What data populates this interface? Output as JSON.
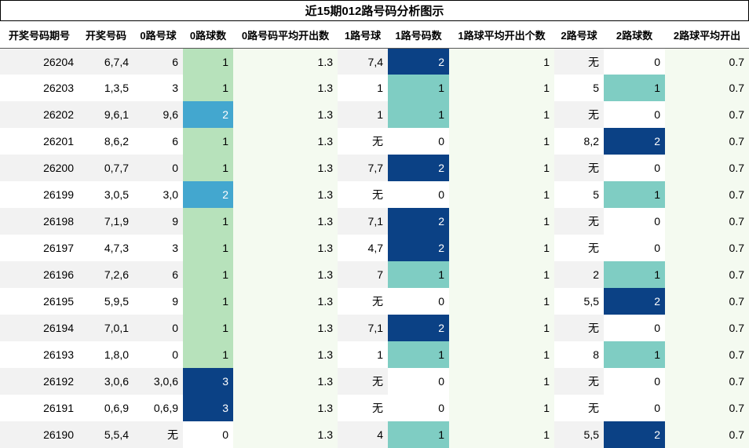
{
  "title": "近15期012路号码分析图示",
  "headers": [
    "开奖号码期号",
    "开奖号码",
    "0路号球",
    "0路球数",
    "0路号码平均开出数",
    "1路号球",
    "1路号码数",
    "1路球平均开出个数",
    "2路号球",
    "2路球数",
    "2路球平均开出"
  ],
  "colors": {
    "count_0road": {
      "1": "#b7e2bb",
      "2": "#43a7cf",
      "3": "#0b4185"
    },
    "count_other": {
      "1": "#7fcdc3",
      "2": "#0b4185"
    },
    "avg_column": "#f4faf0",
    "stripe": "#f2f2f2"
  },
  "rows": [
    {
      "issue": "26204",
      "draw": "6,7,4",
      "r0": "6",
      "c0": "1",
      "a0": "1.3",
      "r1": "7,4",
      "c1": "2",
      "a1": "1",
      "r2": "无",
      "c2": "0",
      "a2": "0.7"
    },
    {
      "issue": "26203",
      "draw": "1,3,5",
      "r0": "3",
      "c0": "1",
      "a0": "1.3",
      "r1": "1",
      "c1": "1",
      "a1": "1",
      "r2": "5",
      "c2": "1",
      "a2": "0.7"
    },
    {
      "issue": "26202",
      "draw": "9,6,1",
      "r0": "9,6",
      "c0": "2",
      "a0": "1.3",
      "r1": "1",
      "c1": "1",
      "a1": "1",
      "r2": "无",
      "c2": "0",
      "a2": "0.7"
    },
    {
      "issue": "26201",
      "draw": "8,6,2",
      "r0": "6",
      "c0": "1",
      "a0": "1.3",
      "r1": "无",
      "c1": "0",
      "a1": "1",
      "r2": "8,2",
      "c2": "2",
      "a2": "0.7"
    },
    {
      "issue": "26200",
      "draw": "0,7,7",
      "r0": "0",
      "c0": "1",
      "a0": "1.3",
      "r1": "7,7",
      "c1": "2",
      "a1": "1",
      "r2": "无",
      "c2": "0",
      "a2": "0.7"
    },
    {
      "issue": "26199",
      "draw": "3,0,5",
      "r0": "3,0",
      "c0": "2",
      "a0": "1.3",
      "r1": "无",
      "c1": "0",
      "a1": "1",
      "r2": "5",
      "c2": "1",
      "a2": "0.7"
    },
    {
      "issue": "26198",
      "draw": "7,1,9",
      "r0": "9",
      "c0": "1",
      "a0": "1.3",
      "r1": "7,1",
      "c1": "2",
      "a1": "1",
      "r2": "无",
      "c2": "0",
      "a2": "0.7"
    },
    {
      "issue": "26197",
      "draw": "4,7,3",
      "r0": "3",
      "c0": "1",
      "a0": "1.3",
      "r1": "4,7",
      "c1": "2",
      "a1": "1",
      "r2": "无",
      "c2": "0",
      "a2": "0.7"
    },
    {
      "issue": "26196",
      "draw": "7,2,6",
      "r0": "6",
      "c0": "1",
      "a0": "1.3",
      "r1": "7",
      "c1": "1",
      "a1": "1",
      "r2": "2",
      "c2": "1",
      "a2": "0.7"
    },
    {
      "issue": "26195",
      "draw": "5,9,5",
      "r0": "9",
      "c0": "1",
      "a0": "1.3",
      "r1": "无",
      "c1": "0",
      "a1": "1",
      "r2": "5,5",
      "c2": "2",
      "a2": "0.7"
    },
    {
      "issue": "26194",
      "draw": "7,0,1",
      "r0": "0",
      "c0": "1",
      "a0": "1.3",
      "r1": "7,1",
      "c1": "2",
      "a1": "1",
      "r2": "无",
      "c2": "0",
      "a2": "0.7"
    },
    {
      "issue": "26193",
      "draw": "1,8,0",
      "r0": "0",
      "c0": "1",
      "a0": "1.3",
      "r1": "1",
      "c1": "1",
      "a1": "1",
      "r2": "8",
      "c2": "1",
      "a2": "0.7"
    },
    {
      "issue": "26192",
      "draw": "3,0,6",
      "r0": "3,0,6",
      "c0": "3",
      "a0": "1.3",
      "r1": "无",
      "c1": "0",
      "a1": "1",
      "r2": "无",
      "c2": "0",
      "a2": "0.7"
    },
    {
      "issue": "26191",
      "draw": "0,6,9",
      "r0": "0,6,9",
      "c0": "3",
      "a0": "1.3",
      "r1": "无",
      "c1": "0",
      "a1": "1",
      "r2": "无",
      "c2": "0",
      "a2": "0.7"
    },
    {
      "issue": "26190",
      "draw": "5,5,4",
      "r0": "无",
      "c0": "0",
      "a0": "1.3",
      "r1": "4",
      "c1": "1",
      "a1": "1",
      "r2": "5,5",
      "c2": "2",
      "a2": "0.7"
    }
  ]
}
